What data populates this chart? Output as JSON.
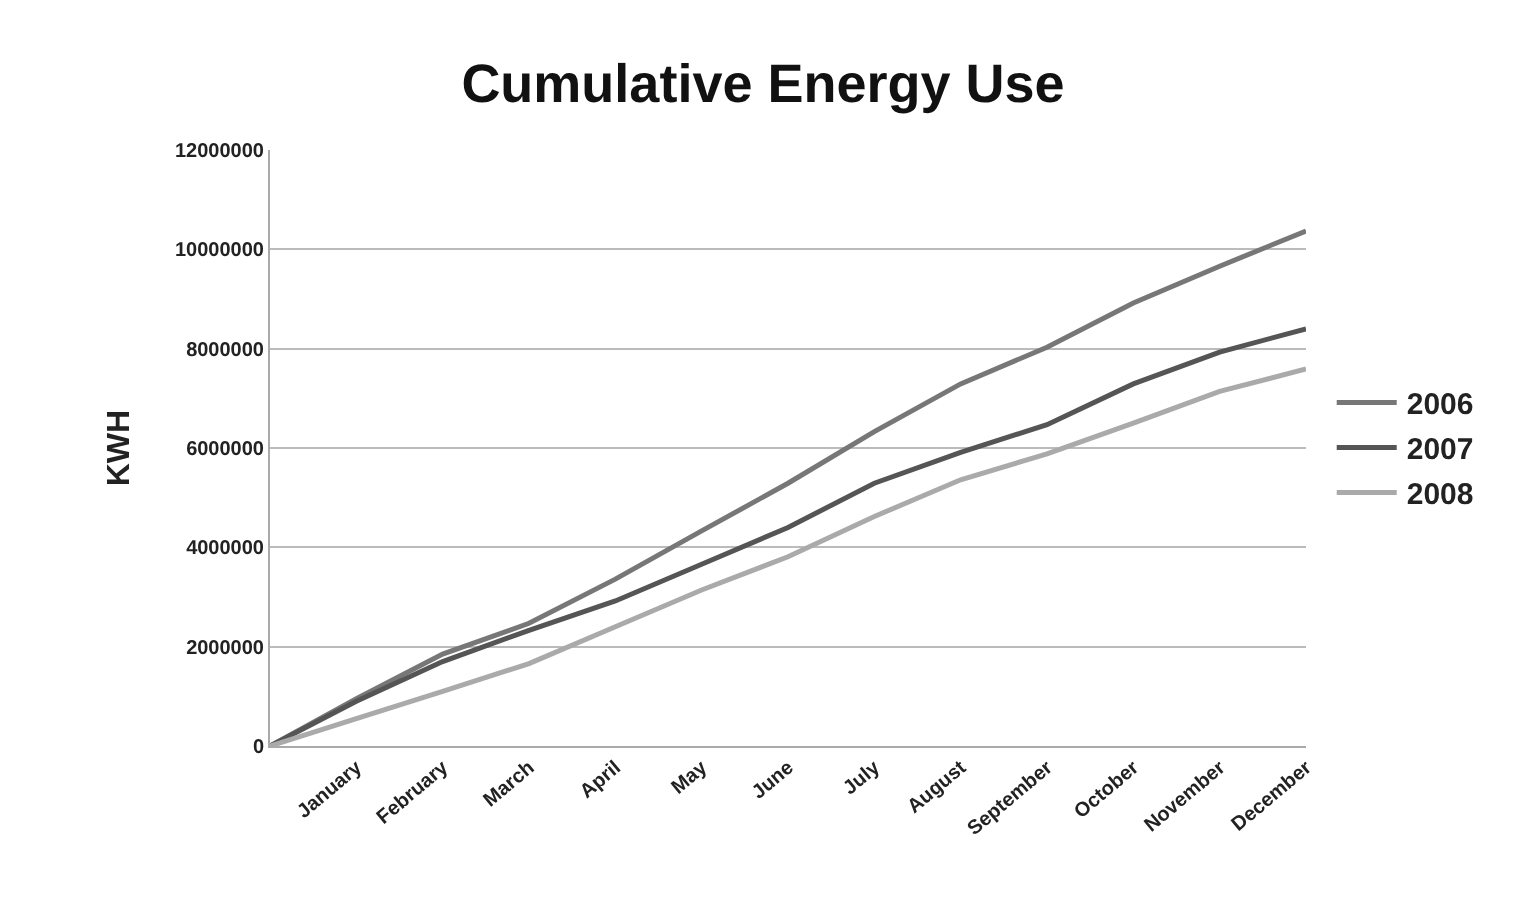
{
  "chart_data": {
    "type": "line",
    "title": "Cumulative Energy Use",
    "ylabel": "KWH",
    "categories": [
      null,
      "January",
      "February",
      "March",
      "April",
      "May",
      "June",
      "July",
      "August",
      "September",
      "October",
      "November",
      "December"
    ],
    "series": [
      {
        "name": "2006",
        "color": "#777777",
        "values": [
          0,
          950000,
          1850000,
          2470000,
          3360000,
          4330000,
          5290000,
          6330000,
          7290000,
          8030000,
          8920000,
          9660000,
          10370000
        ]
      },
      {
        "name": "2007",
        "color": "#555555",
        "values": [
          0,
          900000,
          1700000,
          2330000,
          2920000,
          3660000,
          4400000,
          5290000,
          5910000,
          6470000,
          7290000,
          7930000,
          8400000
        ]
      },
      {
        "name": "2008",
        "color": "#aaaaaa",
        "values": [
          0,
          550000,
          1100000,
          1660000,
          2400000,
          3140000,
          3810000,
          4620000,
          5360000,
          5880000,
          6500000,
          7140000,
          7590000
        ]
      }
    ],
    "ylim": [
      0,
      12000000
    ],
    "yticks": [
      0,
      2000000,
      4000000,
      6000000,
      8000000,
      10000000,
      12000000
    ],
    "grid": "y",
    "legend": "right",
    "marker": "none",
    "line_style": "solid"
  }
}
